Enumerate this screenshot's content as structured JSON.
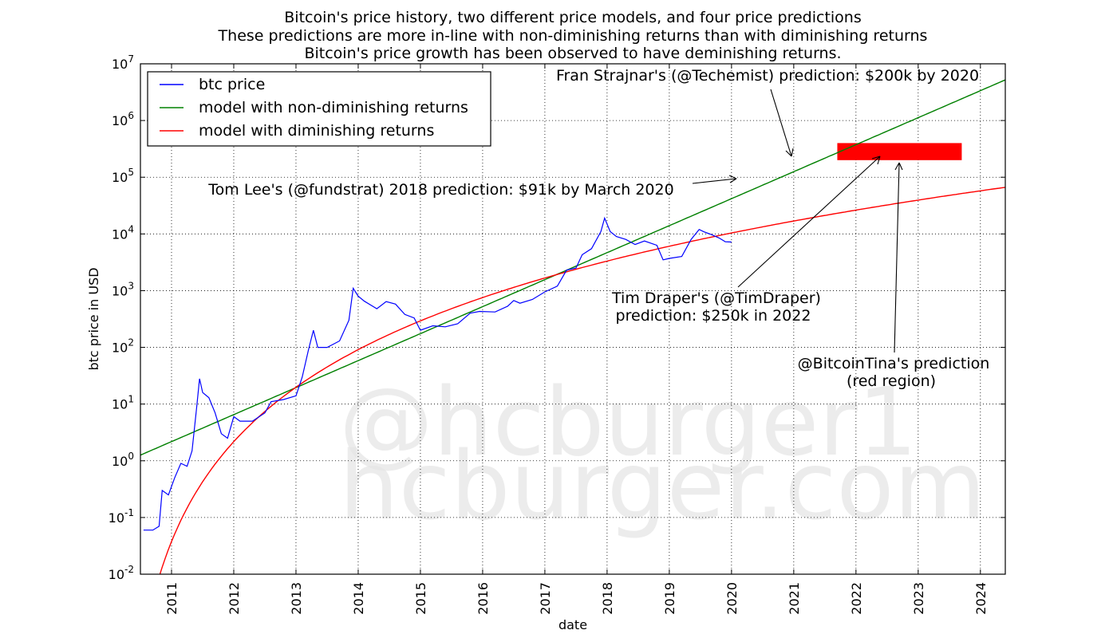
{
  "chart_data": {
    "type": "line",
    "title": [
      "Bitcoin's price history, two different price models, and four price predictions",
      "These predictions are more in-line with non-diminishing returns than with diminishing returns",
      "Bitcoin's price growth has been observed to have deminishing returns."
    ],
    "xlabel": "date",
    "ylabel": "btc price in USD",
    "xlim": [
      2010.5,
      2024.4
    ],
    "ylim_log10": [
      -2,
      7
    ],
    "yscale": "log",
    "grid": true,
    "legend_position": "top-left",
    "x_ticks": [
      "2011",
      "2012",
      "2013",
      "2014",
      "2015",
      "2016",
      "2017",
      "2018",
      "2019",
      "2020",
      "2021",
      "2022",
      "2023",
      "2024"
    ],
    "y_ticks": [
      {
        "exp": -2,
        "label": "10",
        "sup": "-2"
      },
      {
        "exp": -1,
        "label": "10",
        "sup": "-1"
      },
      {
        "exp": 0,
        "label": "10",
        "sup": "0"
      },
      {
        "exp": 1,
        "label": "10",
        "sup": "1"
      },
      {
        "exp": 2,
        "label": "10",
        "sup": "2"
      },
      {
        "exp": 3,
        "label": "10",
        "sup": "3"
      },
      {
        "exp": 4,
        "label": "10",
        "sup": "4"
      },
      {
        "exp": 5,
        "label": "10",
        "sup": "5"
      },
      {
        "exp": 6,
        "label": "10",
        "sup": "6"
      },
      {
        "exp": 7,
        "label": "10",
        "sup": "7"
      }
    ],
    "series": [
      {
        "name": "btc price",
        "color": "#0000ff",
        "points": [
          [
            2010.55,
            0.06
          ],
          [
            2010.7,
            0.06
          ],
          [
            2010.8,
            0.07
          ],
          [
            2010.85,
            0.3
          ],
          [
            2010.95,
            0.25
          ],
          [
            2011.05,
            0.5
          ],
          [
            2011.15,
            0.9
          ],
          [
            2011.25,
            0.8
          ],
          [
            2011.33,
            1.5
          ],
          [
            2011.4,
            8
          ],
          [
            2011.45,
            28
          ],
          [
            2011.5,
            16
          ],
          [
            2011.6,
            13
          ],
          [
            2011.7,
            7
          ],
          [
            2011.8,
            3
          ],
          [
            2011.9,
            2.5
          ],
          [
            2012.0,
            6
          ],
          [
            2012.1,
            5
          ],
          [
            2012.3,
            5
          ],
          [
            2012.5,
            7
          ],
          [
            2012.6,
            11
          ],
          [
            2012.8,
            12
          ],
          [
            2013.0,
            14
          ],
          [
            2013.1,
            30
          ],
          [
            2013.2,
            90
          ],
          [
            2013.28,
            200
          ],
          [
            2013.35,
            100
          ],
          [
            2013.5,
            100
          ],
          [
            2013.7,
            130
          ],
          [
            2013.85,
            300
          ],
          [
            2013.92,
            1100
          ],
          [
            2014.0,
            800
          ],
          [
            2014.1,
            650
          ],
          [
            2014.3,
            480
          ],
          [
            2014.45,
            640
          ],
          [
            2014.6,
            580
          ],
          [
            2014.75,
            380
          ],
          [
            2014.9,
            330
          ],
          [
            2015.0,
            200
          ],
          [
            2015.2,
            240
          ],
          [
            2015.4,
            230
          ],
          [
            2015.6,
            260
          ],
          [
            2015.8,
            400
          ],
          [
            2015.95,
            430
          ],
          [
            2016.2,
            420
          ],
          [
            2016.4,
            530
          ],
          [
            2016.5,
            670
          ],
          [
            2016.6,
            600
          ],
          [
            2016.8,
            700
          ],
          [
            2017.0,
            950
          ],
          [
            2017.2,
            1200
          ],
          [
            2017.35,
            2300
          ],
          [
            2017.5,
            2500
          ],
          [
            2017.6,
            4300
          ],
          [
            2017.75,
            5500
          ],
          [
            2017.9,
            11000
          ],
          [
            2017.96,
            19000
          ],
          [
            2018.05,
            11000
          ],
          [
            2018.15,
            9000
          ],
          [
            2018.3,
            8000
          ],
          [
            2018.45,
            6500
          ],
          [
            2018.6,
            7500
          ],
          [
            2018.8,
            6300
          ],
          [
            2018.9,
            3500
          ],
          [
            2019.0,
            3700
          ],
          [
            2019.2,
            4000
          ],
          [
            2019.35,
            8000
          ],
          [
            2019.48,
            12000
          ],
          [
            2019.55,
            11000
          ],
          [
            2019.7,
            9500
          ],
          [
            2019.8,
            8500
          ],
          [
            2019.9,
            7300
          ],
          [
            2020.0,
            7200
          ]
        ]
      },
      {
        "name": "model with non-diminishing returns",
        "color": "#008000",
        "model": "linear-log"
      },
      {
        "name": "model with diminishing returns",
        "color": "#ff0000",
        "model": "power"
      }
    ],
    "prediction_region": {
      "x_start": 2021.7,
      "x_end": 2023.7,
      "y_low": 200000,
      "y_high": 400000,
      "color": "#ff0000"
    },
    "annotations": [
      {
        "lines": [
          "Fran Strajnar's (@Techemist) prediction: $200k by 2020"
        ]
      },
      {
        "lines": [
          "Tom Lee's (@fundstrat) 2018 prediction: $91k by March 2020"
        ]
      },
      {
        "lines": [
          "Tim Draper's (@TimDraper)",
          "prediction: $250k in 2022"
        ]
      },
      {
        "lines": [
          "@BitcoinTina's prediction",
          "(red region)"
        ]
      }
    ],
    "watermark": [
      "@hcburger1",
      "hcburger.com"
    ]
  }
}
